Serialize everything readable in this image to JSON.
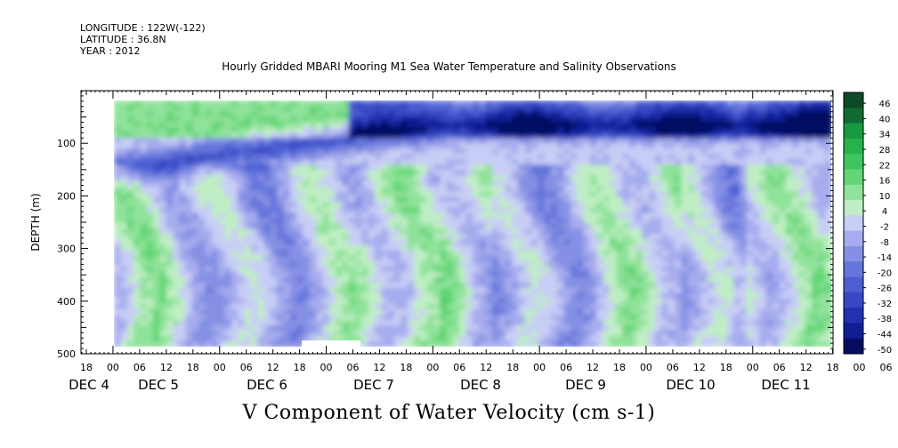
{
  "header": {
    "longitude": "LONGITUDE : 122W(-122)",
    "latitude": "LATITUDE : 36.8N",
    "year": "YEAR : 2012"
  },
  "chart_data": {
    "type": "heatmap",
    "title": "Hourly Gridded MBARI Mooring M1 Sea Water Temperature and Salinity Observations",
    "xlabel": "V Component of Water Velocity (cm s-1)",
    "ylabel": "DEPTH (m)",
    "y_axis": {
      "range": [
        0,
        500
      ],
      "inverted": true,
      "ticks": [
        "100",
        "200",
        "300",
        "400",
        "500"
      ]
    },
    "x_axis": {
      "hour_ticks": [
        "18",
        "00",
        "06",
        "12",
        "18",
        "00",
        "06",
        "12",
        "18",
        "00",
        "06",
        "12",
        "18",
        "00",
        "06",
        "12",
        "18",
        "00",
        "06",
        "12",
        "18",
        "00",
        "06",
        "12",
        "18",
        "00",
        "06",
        "12",
        "18",
        "00",
        "06",
        "12",
        "18"
      ],
      "day_labels": [
        "DEC 4",
        "DEC 5",
        "DEC 6",
        "DEC 7",
        "DEC 8",
        "DEC 9",
        "DEC 10",
        "DEC 11"
      ]
    },
    "colorbar": {
      "labels": [
        "46",
        "40",
        "34",
        "28",
        "22",
        "16",
        "10",
        "4",
        "-2",
        "-8",
        "-14",
        "-20",
        "-26",
        "-32",
        "-38",
        "-44",
        "-50"
      ],
      "colors": [
        "#0d4a25",
        "#116b30",
        "#179a3f",
        "#27b34c",
        "#3ec55e",
        "#62d574",
        "#8fe29a",
        "#bfeec4",
        "#c8cdf5",
        "#a6aced",
        "#8590e4",
        "#6575db",
        "#4c5ed2",
        "#3748c4",
        "#2231b0",
        "#101e93",
        "#050c60"
      ]
    },
    "field": {
      "depth_range": [
        20,
        490
      ],
      "description_columns": [
        {
          "day": "DEC 4 00-12",
          "surface": "positive",
          "mid": "negative",
          "deep": "mixed"
        },
        {
          "day": "DEC 11",
          "surface": "negative",
          "mid": "positive",
          "deep": "positive"
        }
      ]
    }
  }
}
